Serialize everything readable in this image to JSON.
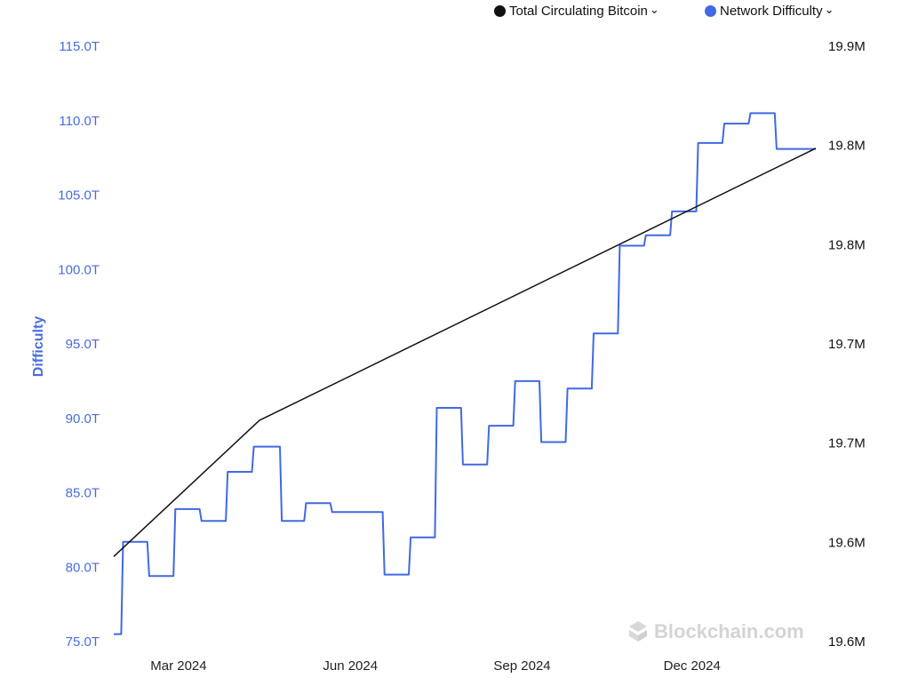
{
  "legend": {
    "items": [
      {
        "label": "Total Circulating Bitcoin",
        "color": "#111111",
        "icon": "chevron-down-icon"
      },
      {
        "label": "Network Difficulty",
        "color": "#4169e1",
        "icon": "chevron-down-icon"
      }
    ]
  },
  "watermark": "Blockchain.com",
  "chart_data": {
    "type": "line",
    "x_tick_labels": [
      "Mar 2024",
      "Jun 2024",
      "Sep 2024",
      "Dec 2024"
    ],
    "y_left": {
      "label": "Difficulty",
      "tick_labels": [
        "75.0T",
        "80.0T",
        "85.0T",
        "90.0T",
        "95.0T",
        "100.0T",
        "105.0T",
        "110.0T",
        "115.0T"
      ],
      "range": [
        75,
        115
      ],
      "unit": "T"
    },
    "y_right": {
      "tick_labels": [
        "19.6M",
        "19.6M",
        "19.7M",
        "19.7M",
        "19.8M",
        "19.8M",
        "19.9M"
      ],
      "range": [
        19.55,
        19.9
      ],
      "unit": "M"
    },
    "series": [
      {
        "name": "Network Difficulty",
        "axis": "left",
        "color": "#4169e1",
        "x": [
          "2024-02-01",
          "2024-02-05",
          "2024-02-06",
          "2024-02-19",
          "2024-02-20",
          "2024-03-04",
          "2024-03-05",
          "2024-03-18",
          "2024-03-19",
          "2024-04-01",
          "2024-04-02",
          "2024-04-15",
          "2024-04-16",
          "2024-04-30",
          "2024-05-01",
          "2024-05-13",
          "2024-05-14",
          "2024-05-27",
          "2024-05-28",
          "2024-06-10",
          "2024-06-11",
          "2024-06-24",
          "2024-06-25",
          "2024-07-08",
          "2024-07-09",
          "2024-07-22",
          "2024-07-23",
          "2024-08-05",
          "2024-08-06",
          "2024-08-19",
          "2024-08-20",
          "2024-09-02",
          "2024-09-03",
          "2024-09-16",
          "2024-09-17",
          "2024-09-30",
          "2024-10-01",
          "2024-10-14",
          "2024-10-15",
          "2024-10-28",
          "2024-10-29",
          "2024-11-11",
          "2024-11-12",
          "2024-11-25",
          "2024-11-26",
          "2024-12-09",
          "2024-12-10",
          "2024-12-23",
          "2024-12-24",
          "2025-01-06",
          "2025-01-07",
          "2025-01-20",
          "2025-01-21",
          "2025-02-03",
          "2025-02-04",
          "2025-02-11"
        ],
        "values": [
          75.5,
          75.5,
          81.7,
          81.7,
          79.4,
          79.4,
          83.9,
          83.9,
          83.1,
          83.1,
          86.4,
          86.4,
          88.1,
          88.1,
          83.1,
          83.1,
          84.3,
          84.3,
          83.7,
          83.7,
          83.7,
          83.7,
          79.5,
          79.5,
          82.0,
          82.0,
          90.7,
          90.7,
          86.9,
          86.9,
          89.5,
          89.5,
          92.5,
          92.5,
          88.4,
          88.4,
          92.0,
          92.0,
          95.7,
          95.7,
          101.6,
          101.6,
          102.3,
          102.3,
          103.9,
          103.9,
          108.5,
          108.5,
          109.8,
          109.8,
          110.5,
          110.5,
          108.1,
          108.1,
          108.1,
          108.1
        ]
      },
      {
        "name": "Total Circulating Bitcoin",
        "axis": "right",
        "color": "#111111",
        "x": [
          "2024-02-01",
          "2024-04-19",
          "2025-02-11"
        ],
        "values": [
          19.6,
          19.68,
          19.84
        ]
      }
    ],
    "grid": false,
    "legend_position": "top-right"
  }
}
